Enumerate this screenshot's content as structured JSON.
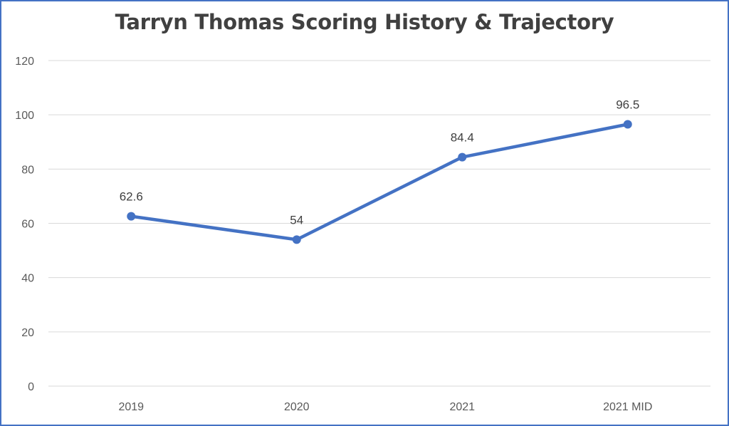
{
  "chart_data": {
    "type": "line",
    "title": "Tarryn Thomas Scoring History & Trajectory",
    "categories": [
      "2019",
      "2020",
      "2021",
      "2021 MID"
    ],
    "series": [
      {
        "values": [
          62.6,
          54,
          84.4,
          96.5
        ],
        "labels": [
          "62.6",
          "54",
          "84.4",
          "96.5"
        ]
      }
    ],
    "ylim": [
      0,
      120
    ],
    "yticks": [
      "0",
      "20",
      "40",
      "60",
      "80",
      "100",
      "120"
    ],
    "grid": true,
    "legend": "none",
    "colors": {
      "line": "#4472c4",
      "grid": "#d9d9d9",
      "frame": "#4472c4"
    }
  }
}
